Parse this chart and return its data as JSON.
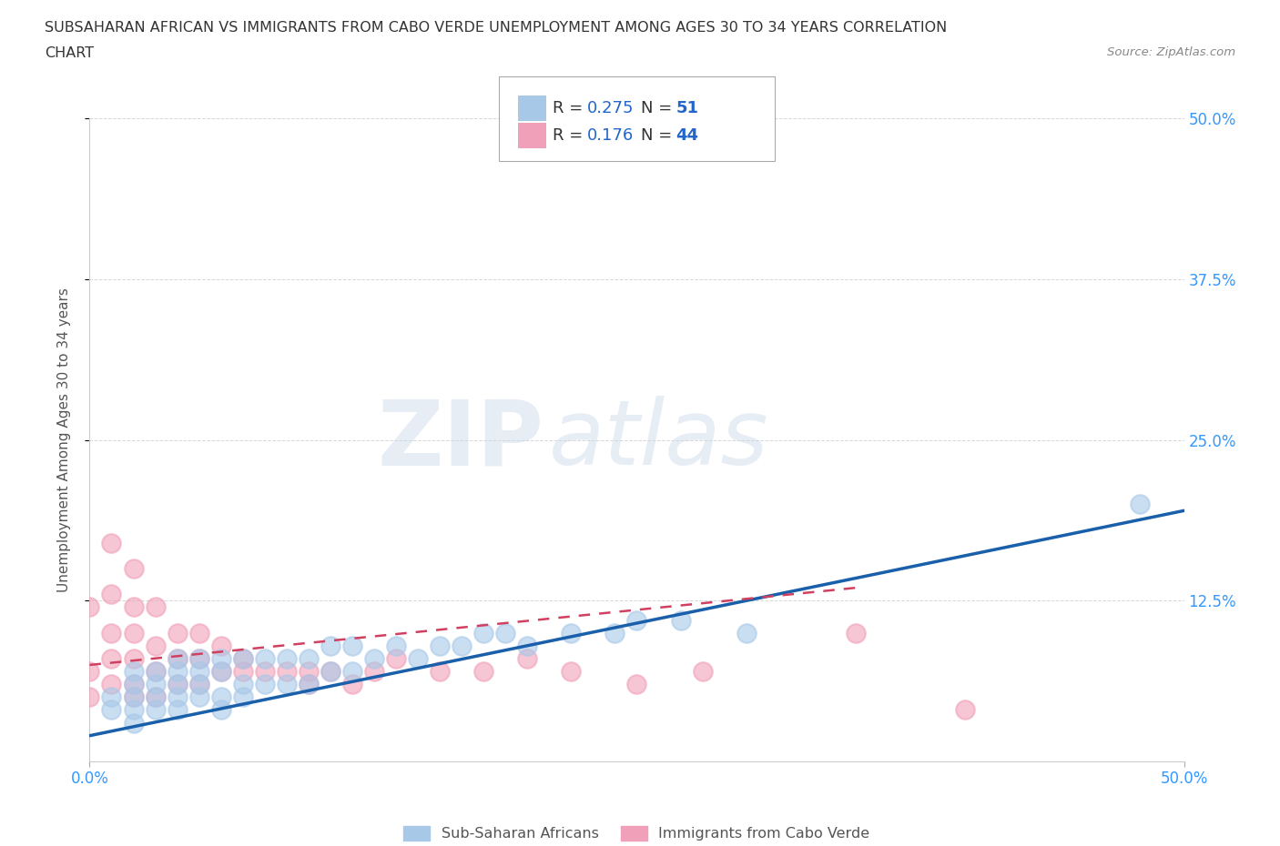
{
  "title_line1": "SUBSAHARAN AFRICAN VS IMMIGRANTS FROM CABO VERDE UNEMPLOYMENT AMONG AGES 30 TO 34 YEARS CORRELATION",
  "title_line2": "CHART",
  "source_text": "Source: ZipAtlas.com",
  "ylabel": "Unemployment Among Ages 30 to 34 years",
  "xlim": [
    0.0,
    0.5
  ],
  "ylim": [
    0.0,
    0.5
  ],
  "xtick_left_label": "0.0%",
  "xtick_right_label": "50.0%",
  "right_ytick_labels": [
    "12.5%",
    "25.0%",
    "37.5%",
    "50.0%"
  ],
  "right_ytick_values": [
    0.125,
    0.25,
    0.375,
    0.5
  ],
  "blue_scatter_x": [
    0.01,
    0.01,
    0.02,
    0.02,
    0.02,
    0.02,
    0.02,
    0.03,
    0.03,
    0.03,
    0.03,
    0.04,
    0.04,
    0.04,
    0.04,
    0.04,
    0.05,
    0.05,
    0.05,
    0.05,
    0.06,
    0.06,
    0.06,
    0.06,
    0.07,
    0.07,
    0.07,
    0.08,
    0.08,
    0.09,
    0.09,
    0.1,
    0.1,
    0.11,
    0.11,
    0.12,
    0.12,
    0.13,
    0.14,
    0.15,
    0.16,
    0.17,
    0.18,
    0.19,
    0.2,
    0.22,
    0.24,
    0.25,
    0.27,
    0.3,
    0.48
  ],
  "blue_scatter_y": [
    0.04,
    0.05,
    0.03,
    0.04,
    0.05,
    0.06,
    0.07,
    0.04,
    0.05,
    0.06,
    0.07,
    0.04,
    0.05,
    0.06,
    0.07,
    0.08,
    0.05,
    0.06,
    0.07,
    0.08,
    0.04,
    0.05,
    0.07,
    0.08,
    0.05,
    0.06,
    0.08,
    0.06,
    0.08,
    0.06,
    0.08,
    0.06,
    0.08,
    0.07,
    0.09,
    0.07,
    0.09,
    0.08,
    0.09,
    0.08,
    0.09,
    0.09,
    0.1,
    0.1,
    0.09,
    0.1,
    0.1,
    0.11,
    0.11,
    0.1,
    0.2
  ],
  "pink_scatter_x": [
    0.0,
    0.0,
    0.0,
    0.01,
    0.01,
    0.01,
    0.01,
    0.01,
    0.02,
    0.02,
    0.02,
    0.02,
    0.02,
    0.02,
    0.03,
    0.03,
    0.03,
    0.03,
    0.04,
    0.04,
    0.04,
    0.05,
    0.05,
    0.05,
    0.06,
    0.06,
    0.07,
    0.07,
    0.08,
    0.09,
    0.1,
    0.1,
    0.11,
    0.12,
    0.13,
    0.14,
    0.16,
    0.18,
    0.2,
    0.22,
    0.25,
    0.28,
    0.35,
    0.4
  ],
  "pink_scatter_y": [
    0.05,
    0.07,
    0.12,
    0.06,
    0.08,
    0.1,
    0.13,
    0.17,
    0.05,
    0.06,
    0.08,
    0.1,
    0.12,
    0.15,
    0.05,
    0.07,
    0.09,
    0.12,
    0.06,
    0.08,
    0.1,
    0.06,
    0.08,
    0.1,
    0.07,
    0.09,
    0.07,
    0.08,
    0.07,
    0.07,
    0.07,
    0.06,
    0.07,
    0.06,
    0.07,
    0.08,
    0.07,
    0.07,
    0.08,
    0.07,
    0.06,
    0.07,
    0.1,
    0.04
  ],
  "blue_line_x": [
    0.0,
    0.5
  ],
  "blue_line_y": [
    0.02,
    0.195
  ],
  "pink_line_x": [
    0.0,
    0.35
  ],
  "pink_line_y": [
    0.075,
    0.135
  ],
  "blue_color": "#A8C8E8",
  "pink_color": "#F0A0B8",
  "blue_line_color": "#1a5faa",
  "pink_line_color": "#d04060",
  "R_blue": "0.275",
  "N_blue": "51",
  "R_pink": "0.176",
  "N_pink": "44",
  "legend_label_blue": "Sub-Saharan Africans",
  "legend_label_pink": "Immigrants from Cabo Verde",
  "watermark_zip": "ZIP",
  "watermark_atlas": "atlas",
  "grid_color": "#CCCCCC",
  "background_color": "#FFFFFF",
  "title_color": "#333333",
  "axis_label_color": "#555555",
  "tick_color": "#3399FF",
  "source_color": "#888888",
  "stat_color": "#2266CC"
}
